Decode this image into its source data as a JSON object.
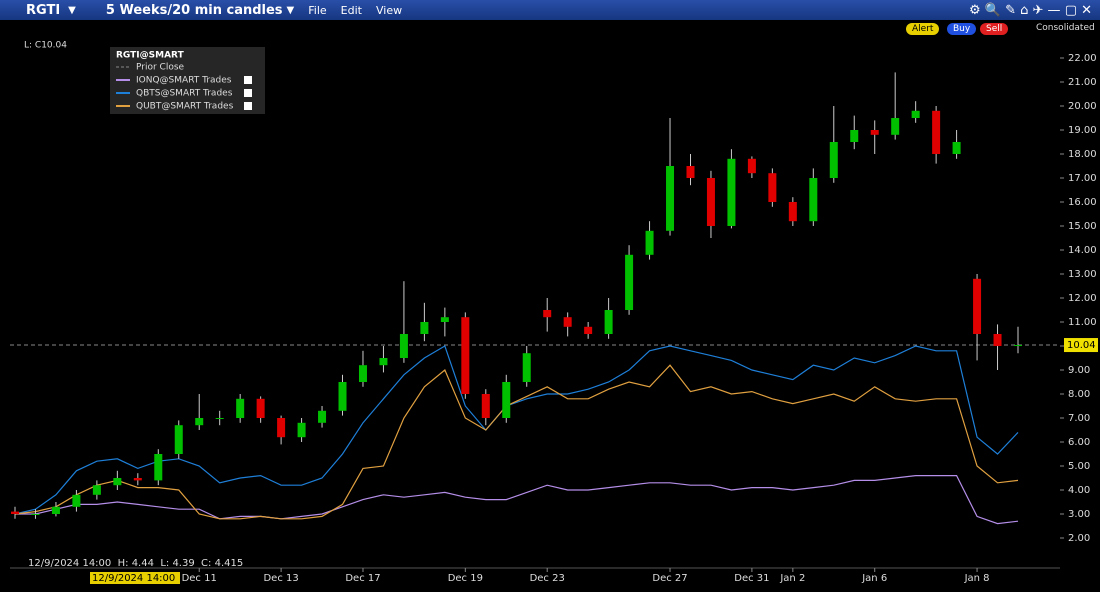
{
  "window": {
    "symbol": "RGTI",
    "period": "5 Weeks/20 min candles",
    "menus": [
      "File",
      "Edit",
      "View"
    ]
  },
  "toolbar": {
    "buttons": [
      "Alert",
      "Buy",
      "Sell"
    ],
    "feed": "Consolidated"
  },
  "chart_data": {
    "type": "candlestick",
    "readout_top": "L: C10.04",
    "legend_title": "RGTI@SMART",
    "prior_close_label": "Prior Close",
    "crosshair_label": "12/9/2024 14:00",
    "readout_bottom": "12/9/2024 14:00  H: 4.44  L: 4.39  C: 4.415",
    "last_price": 10.04,
    "up_color": "#00c000",
    "down_color": "#e00000",
    "categories": [
      null,
      null,
      null,
      null,
      null,
      null,
      null,
      null,
      null,
      "Dec 11",
      null,
      null,
      null,
      "Dec 13",
      null,
      null,
      null,
      "Dec 17",
      null,
      null,
      null,
      null,
      "Dec 19",
      null,
      null,
      null,
      "Dec 23",
      null,
      null,
      null,
      null,
      null,
      "Dec 27",
      null,
      null,
      null,
      "Dec 31",
      null,
      "Jan 2",
      null,
      null,
      null,
      "Jan 6",
      null,
      null,
      null,
      null,
      "Jan 8",
      null,
      null
    ],
    "open": [
      3.1,
      3.0,
      3.0,
      3.3,
      3.8,
      4.2,
      4.5,
      4.4,
      5.5,
      6.7,
      7.0,
      7.0,
      7.8,
      7.0,
      6.2,
      6.8,
      7.3,
      8.5,
      9.2,
      9.5,
      10.5,
      11.0,
      11.2,
      8.0,
      7.0,
      8.5,
      11.5,
      11.2,
      10.8,
      10.5,
      11.5,
      13.8,
      14.8,
      17.5,
      17.0,
      15.0,
      17.8,
      17.2,
      16.0,
      15.2,
      17.0,
      18.5,
      19.0,
      18.8,
      19.5,
      19.8,
      18.0,
      12.8,
      10.5,
      10.0
    ],
    "high": [
      3.3,
      3.2,
      3.5,
      4.0,
      4.4,
      4.8,
      4.7,
      5.7,
      6.9,
      8.0,
      7.3,
      8.0,
      7.9,
      7.1,
      7.0,
      7.5,
      8.8,
      9.8,
      10.0,
      12.7,
      11.8,
      11.6,
      11.4,
      8.2,
      8.8,
      10.0,
      12.0,
      11.4,
      11.0,
      12.0,
      14.2,
      15.2,
      19.5,
      18.0,
      17.3,
      18.2,
      17.9,
      17.4,
      16.2,
      17.4,
      20.0,
      19.6,
      19.4,
      21.4,
      20.2,
      20.0,
      19.0,
      13.0,
      10.9,
      10.8
    ],
    "low": [
      2.8,
      2.8,
      2.9,
      3.1,
      3.6,
      4.0,
      4.2,
      4.2,
      5.3,
      6.5,
      6.7,
      6.8,
      6.8,
      5.9,
      6.0,
      6.6,
      7.1,
      8.3,
      8.9,
      9.3,
      10.2,
      10.4,
      7.8,
      6.7,
      6.8,
      8.3,
      10.6,
      10.4,
      10.3,
      10.3,
      11.3,
      13.6,
      14.6,
      16.7,
      14.5,
      14.9,
      17.0,
      15.8,
      15.0,
      15.0,
      16.8,
      18.2,
      18.0,
      18.6,
      19.3,
      17.6,
      17.8,
      9.4,
      9.0,
      9.7
    ],
    "close": [
      3.0,
      3.0,
      3.3,
      3.8,
      4.2,
      4.5,
      4.4,
      5.5,
      6.7,
      7.0,
      7.0,
      7.8,
      7.0,
      6.2,
      6.8,
      7.3,
      8.5,
      9.2,
      9.5,
      10.5,
      11.0,
      11.2,
      8.0,
      7.0,
      8.5,
      9.7,
      11.2,
      10.8,
      10.5,
      11.5,
      13.8,
      14.8,
      17.5,
      17.0,
      15.0,
      17.8,
      17.2,
      16.0,
      15.2,
      17.0,
      18.5,
      19.0,
      18.8,
      19.5,
      19.8,
      18.0,
      18.5,
      10.5,
      10.0,
      10.04
    ],
    "series": [
      {
        "name": "IONQ@SMART Trades",
        "color": "#b48ee8",
        "values": [
          3.0,
          3.0,
          3.2,
          3.4,
          3.4,
          3.5,
          3.4,
          3.3,
          3.2,
          3.2,
          2.8,
          2.9,
          2.9,
          2.8,
          2.9,
          3.0,
          3.3,
          3.6,
          3.8,
          3.7,
          3.8,
          3.9,
          3.7,
          3.6,
          3.6,
          3.9,
          4.2,
          4.0,
          4.0,
          4.1,
          4.2,
          4.3,
          4.3,
          4.2,
          4.2,
          4.0,
          4.1,
          4.1,
          4.0,
          4.1,
          4.2,
          4.4,
          4.4,
          4.5,
          4.6,
          4.6,
          4.6,
          2.9,
          2.6,
          2.7
        ]
      },
      {
        "name": "QBTS@SMART Trades",
        "color": "#1e7fd8",
        "values": [
          3.0,
          3.2,
          3.8,
          4.8,
          5.2,
          5.3,
          4.9,
          5.2,
          5.3,
          5.0,
          4.3,
          4.5,
          4.6,
          4.2,
          4.2,
          4.5,
          5.5,
          6.8,
          7.8,
          8.8,
          9.5,
          10.0,
          7.5,
          6.5,
          7.5,
          7.8,
          8.0,
          8.0,
          8.2,
          8.5,
          9.0,
          9.8,
          10.0,
          9.8,
          9.6,
          9.4,
          9.0,
          8.8,
          8.6,
          9.2,
          9.0,
          9.5,
          9.3,
          9.6,
          10.0,
          9.8,
          9.8,
          6.2,
          5.5,
          6.4
        ]
      },
      {
        "name": "QUBT@SMART Trades",
        "color": "#e0a040",
        "values": [
          3.0,
          3.1,
          3.3,
          3.8,
          4.2,
          4.4,
          4.1,
          4.1,
          4.0,
          3.0,
          2.8,
          2.8,
          2.9,
          2.8,
          2.8,
          2.9,
          3.4,
          4.9,
          5.0,
          7.0,
          8.3,
          9.0,
          7.0,
          6.5,
          7.5,
          7.9,
          8.3,
          7.8,
          7.8,
          8.2,
          8.5,
          8.3,
          9.2,
          8.1,
          8.3,
          8.0,
          8.1,
          7.8,
          7.6,
          7.8,
          8.0,
          7.7,
          8.3,
          7.8,
          7.7,
          7.8,
          7.8,
          5.0,
          4.3,
          4.4
        ]
      }
    ],
    "ylim": [
      1,
      22.75
    ],
    "yticks": [
      {
        "value": 2,
        "label": "2.00"
      },
      {
        "value": 3,
        "label": "3.00"
      },
      {
        "value": 4,
        "label": "4.00"
      },
      {
        "value": 5,
        "label": "5.00"
      },
      {
        "value": 6,
        "label": "6.00"
      },
      {
        "value": 7,
        "label": "7.00"
      },
      {
        "value": 8,
        "label": "8.00"
      },
      {
        "value": 9,
        "label": "9.00"
      },
      {
        "value": 10,
        "label": "10.00"
      },
      {
        "value": 11,
        "label": "11.00"
      },
      {
        "value": 12,
        "label": "12.00"
      },
      {
        "value": 13,
        "label": "13.00"
      },
      {
        "value": 14,
        "label": "14.00"
      },
      {
        "value": 15,
        "label": "15.00"
      },
      {
        "value": 16,
        "label": "16.00"
      },
      {
        "value": 17,
        "label": "17.00"
      },
      {
        "value": 18,
        "label": "18.00"
      },
      {
        "value": 19,
        "label": "19.00"
      },
      {
        "value": 20,
        "label": "20.00"
      },
      {
        "value": 21,
        "label": "21.00"
      },
      {
        "value": 22,
        "label": "22.00"
      }
    ],
    "grid": false
  }
}
